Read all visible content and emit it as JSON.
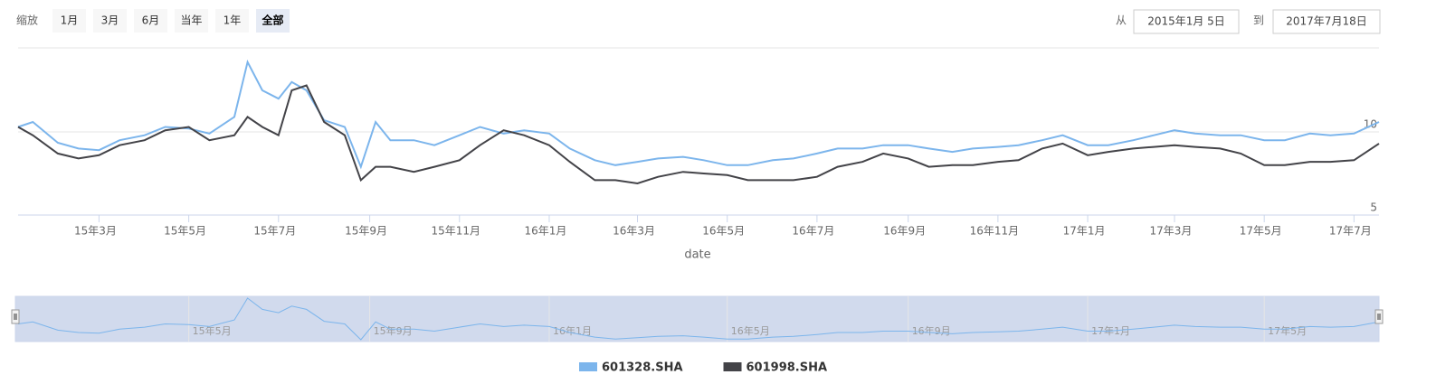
{
  "toolbar": {
    "zoom_label": "缩放",
    "buttons": [
      "1月",
      "3月",
      "6月",
      "当年",
      "1年",
      "全部"
    ],
    "selected_index": 5,
    "from_label": "从",
    "from": "2015年1月 5日",
    "to_label": "到",
    "to": "2017年7月18日"
  },
  "chart_data": {
    "type": "line",
    "x_label": "date",
    "x": [
      "2015-01-05",
      "2015-01-15",
      "2015-02-01",
      "2015-02-15",
      "2015-03-01",
      "2015-03-15",
      "2015-04-01",
      "2015-04-15",
      "2015-05-01",
      "2015-05-15",
      "2015-06-01",
      "2015-06-10",
      "2015-06-20",
      "2015-07-01",
      "2015-07-10",
      "2015-07-20",
      "2015-08-01",
      "2015-08-15",
      "2015-08-26",
      "2015-09-05",
      "2015-09-15",
      "2015-10-01",
      "2015-10-15",
      "2015-11-01",
      "2015-11-15",
      "2015-12-01",
      "2015-12-15",
      "2016-01-01",
      "2016-01-15",
      "2016-02-01",
      "2016-02-15",
      "2016-03-01",
      "2016-03-15",
      "2016-04-01",
      "2016-04-15",
      "2016-05-01",
      "2016-05-15",
      "2016-06-01",
      "2016-06-15",
      "2016-07-01",
      "2016-07-15",
      "2016-08-01",
      "2016-08-15",
      "2016-09-01",
      "2016-09-15",
      "2016-10-01",
      "2016-10-15",
      "2016-11-01",
      "2016-11-15",
      "2016-12-01",
      "2016-12-15",
      "2017-01-01",
      "2017-01-15",
      "2017-02-01",
      "2017-02-15",
      "2017-03-01",
      "2017-03-15",
      "2017-04-01",
      "2017-04-15",
      "2017-05-01",
      "2017-05-15",
      "2017-06-01",
      "2017-06-15",
      "2017-07-01",
      "2017-07-18"
    ],
    "xlim": [
      "2015-01-05",
      "2017-07-18"
    ],
    "xticks": [
      {
        "value": "2015-03-01",
        "label": "15年3月"
      },
      {
        "value": "2015-05-01",
        "label": "15年5月"
      },
      {
        "value": "2015-07-01",
        "label": "15年7月"
      },
      {
        "value": "2015-09-01",
        "label": "15年9月"
      },
      {
        "value": "2015-11-01",
        "label": "15年11月"
      },
      {
        "value": "2016-01-01",
        "label": "16年1月"
      },
      {
        "value": "2016-03-01",
        "label": "16年3月"
      },
      {
        "value": "2016-05-01",
        "label": "16年5月"
      },
      {
        "value": "2016-07-01",
        "label": "16年7月"
      },
      {
        "value": "2016-09-01",
        "label": "16年9月"
      },
      {
        "value": "2016-11-01",
        "label": "16年11月"
      },
      {
        "value": "2017-01-01",
        "label": "17年1月"
      },
      {
        "value": "2017-03-01",
        "label": "17年3月"
      },
      {
        "value": "2017-05-01",
        "label": "17年5月"
      },
      {
        "value": "2017-07-01",
        "label": "17年7月"
      }
    ],
    "ylim": [
      5,
      15
    ],
    "yticks": [
      5,
      10
    ],
    "grid": true,
    "legend": "bottom",
    "series": [
      {
        "name": "601328.SHA",
        "color": "#7cb5ec",
        "values": [
          10.3,
          10.6,
          9.35,
          9.0,
          8.9,
          9.5,
          9.8,
          10.3,
          10.2,
          9.9,
          10.9,
          14.2,
          12.5,
          12.0,
          13.0,
          12.5,
          10.7,
          10.3,
          7.9,
          10.6,
          9.5,
          9.5,
          9.2,
          9.8,
          10.3,
          9.9,
          10.1,
          9.9,
          9.0,
          8.3,
          8.0,
          8.2,
          8.4,
          8.5,
          8.3,
          8.0,
          8.0,
          8.3,
          8.4,
          8.7,
          9.0,
          9.0,
          9.2,
          9.2,
          9.0,
          8.8,
          9.0,
          9.1,
          9.2,
          9.5,
          9.8,
          9.2,
          9.2,
          9.5,
          9.8,
          10.1,
          9.9,
          9.8,
          9.8,
          9.5,
          9.5,
          9.9,
          9.8,
          9.9,
          10.6
        ]
      },
      {
        "name": "601998.SHA",
        "color": "#434348",
        "values": [
          10.3,
          9.8,
          8.7,
          8.4,
          8.6,
          9.2,
          9.5,
          10.1,
          10.3,
          9.5,
          9.8,
          10.9,
          10.3,
          9.8,
          12.5,
          12.8,
          10.6,
          9.8,
          7.1,
          7.9,
          7.9,
          7.6,
          7.9,
          8.3,
          9.2,
          10.1,
          9.8,
          9.2,
          8.2,
          7.1,
          7.1,
          6.9,
          7.3,
          7.6,
          7.5,
          7.4,
          7.1,
          7.1,
          7.1,
          7.3,
          7.9,
          8.2,
          8.7,
          8.4,
          7.9,
          8.0,
          8.0,
          8.2,
          8.3,
          9.0,
          9.3,
          8.6,
          8.8,
          9.0,
          9.1,
          9.2,
          9.1,
          9.0,
          8.7,
          8.0,
          8.0,
          8.2,
          8.2,
          8.3,
          9.3
        ]
      }
    ],
    "navigator": {
      "series_index": 0,
      "xticks": [
        {
          "value": "2015-05-01",
          "label": "15年5月"
        },
        {
          "value": "2015-09-01",
          "label": "15年9月"
        },
        {
          "value": "2016-01-01",
          "label": "16年1月"
        },
        {
          "value": "2016-05-01",
          "label": "16年5月"
        },
        {
          "value": "2016-09-01",
          "label": "16年9月"
        },
        {
          "value": "2017-01-01",
          "label": "17年1月"
        },
        {
          "value": "2017-05-01",
          "label": "17年5月"
        }
      ]
    }
  }
}
